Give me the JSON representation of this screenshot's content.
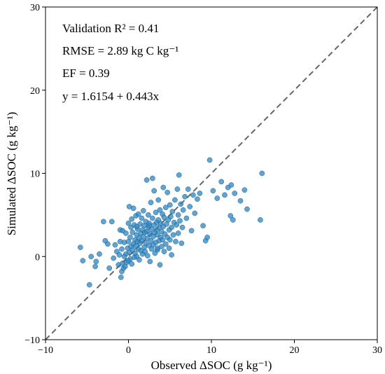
{
  "chart_data": {
    "type": "scatter",
    "xlabel": "Observed ΔSOC (g kg⁻¹)",
    "ylabel": "Simulated ΔSOC (g kg⁻¹)",
    "xlim": [
      -10,
      30
    ],
    "ylim": [
      -10,
      30
    ],
    "xticks": [
      "−10",
      "0",
      "10",
      "20",
      "30"
    ],
    "yticks": [
      "−10",
      "0",
      "10",
      "20",
      "30"
    ],
    "grid": false,
    "point_color": "#2e86c1",
    "reference_line": {
      "style": "dashed",
      "color": "#666666",
      "from": [
        -10,
        -10
      ],
      "to": [
        30,
        30
      ]
    },
    "annotations": [
      "Validation R² = 0.41",
      "RMSE = 2.89 kg C kg⁻¹",
      "EF = 0.39",
      "y = 1.6154 + 0.443x"
    ],
    "points": [
      [
        -5.8,
        1.1
      ],
      [
        -5.5,
        -0.5
      ],
      [
        -4.7,
        -3.4
      ],
      [
        -4.5,
        0.0
      ],
      [
        -4.0,
        -1.2
      ],
      [
        -3.9,
        -0.6
      ],
      [
        -3.5,
        0.3
      ],
      [
        -3.0,
        4.2
      ],
      [
        -2.8,
        1.9
      ],
      [
        -2.5,
        1.5
      ],
      [
        -2.3,
        -1.4
      ],
      [
        -2.0,
        4.2
      ],
      [
        -1.8,
        -0.2
      ],
      [
        -1.6,
        1.4
      ],
      [
        -1.4,
        0.6
      ],
      [
        -1.2,
        -1.0
      ],
      [
        -1.1,
        0.2
      ],
      [
        -1.0,
        3.2
      ],
      [
        -1.0,
        1.8
      ],
      [
        -0.9,
        -2.5
      ],
      [
        -0.8,
        -1.8
      ],
      [
        -0.8,
        0.9
      ],
      [
        -0.7,
        -0.8
      ],
      [
        -0.7,
        3.1
      ],
      [
        -0.6,
        -1.4
      ],
      [
        -0.5,
        1.7
      ],
      [
        -0.4,
        -1.2
      ],
      [
        -0.3,
        0.3
      ],
      [
        -0.3,
        2.8
      ],
      [
        -0.2,
        -0.7
      ],
      [
        -0.1,
        1.0
      ],
      [
        0.0,
        1.8
      ],
      [
        0.0,
        4.0
      ],
      [
        0.1,
        0.5
      ],
      [
        0.1,
        6.0
      ],
      [
        0.2,
        -0.3
      ],
      [
        0.2,
        2.3
      ],
      [
        0.3,
        3.5
      ],
      [
        0.3,
        1.2
      ],
      [
        0.4,
        4.5
      ],
      [
        0.4,
        -0.9
      ],
      [
        0.5,
        0.8
      ],
      [
        0.5,
        2.9
      ],
      [
        0.6,
        5.8
      ],
      [
        0.6,
        1.5
      ],
      [
        0.7,
        -0.1
      ],
      [
        0.7,
        3.8
      ],
      [
        0.8,
        2.0
      ],
      [
        0.8,
        0.4
      ],
      [
        0.9,
        1.3
      ],
      [
        0.9,
        4.9
      ],
      [
        1.0,
        2.6
      ],
      [
        1.0,
        0.0
      ],
      [
        1.1,
        1.8
      ],
      [
        1.1,
        3.3
      ],
      [
        1.2,
        0.9
      ],
      [
        1.2,
        5.1
      ],
      [
        1.3,
        2.2
      ],
      [
        1.3,
        -0.4
      ],
      [
        1.4,
        1.6
      ],
      [
        1.4,
        3.9
      ],
      [
        1.5,
        0.7
      ],
      [
        1.5,
        2.8
      ],
      [
        1.6,
        4.6
      ],
      [
        1.6,
        1.9
      ],
      [
        1.7,
        0.3
      ],
      [
        1.7,
        3.2
      ],
      [
        1.8,
        5.5
      ],
      [
        1.8,
        2.4
      ],
      [
        1.9,
        1.1
      ],
      [
        1.9,
        3.7
      ],
      [
        2.0,
        0.6
      ],
      [
        2.0,
        2.9
      ],
      [
        2.1,
        4.2
      ],
      [
        2.1,
        1.6
      ],
      [
        2.2,
        9.2
      ],
      [
        2.2,
        3.0
      ],
      [
        2.3,
        0.1
      ],
      [
        2.3,
        2.2
      ],
      [
        2.4,
        5.0
      ],
      [
        2.4,
        3.5
      ],
      [
        2.5,
        1.3
      ],
      [
        2.5,
        4.0
      ],
      [
        2.6,
        2.7
      ],
      [
        2.6,
        -0.6
      ],
      [
        2.7,
        6.5
      ],
      [
        2.7,
        1.9
      ],
      [
        2.8,
        3.3
      ],
      [
        2.8,
        0.9
      ],
      [
        2.9,
        9.4
      ],
      [
        2.9,
        4.6
      ],
      [
        3.0,
        2.4
      ],
      [
        3.0,
        1.4
      ],
      [
        3.1,
        3.8
      ],
      [
        3.1,
        7.9
      ],
      [
        3.2,
        0.4
      ],
      [
        3.2,
        2.9
      ],
      [
        3.3,
        5.3
      ],
      [
        3.3,
        1.7
      ],
      [
        3.4,
        4.1
      ],
      [
        3.4,
        3.2
      ],
      [
        3.5,
        0.8
      ],
      [
        3.5,
        2.6
      ],
      [
        3.6,
        6.8
      ],
      [
        3.6,
        4.4
      ],
      [
        3.7,
        1.9
      ],
      [
        3.7,
        3.5
      ],
      [
        3.8,
        -1.0
      ],
      [
        3.8,
        5.6
      ],
      [
        3.9,
        2.3
      ],
      [
        3.9,
        4.0
      ],
      [
        4.0,
        1.2
      ],
      [
        4.0,
        3.0
      ],
      [
        4.1,
        5.1
      ],
      [
        4.1,
        2.0
      ],
      [
        4.2,
        8.3
      ],
      [
        4.2,
        3.6
      ],
      [
        4.3,
        0.6
      ],
      [
        4.3,
        4.7
      ],
      [
        4.4,
        2.7
      ],
      [
        4.5,
        5.9
      ],
      [
        4.5,
        1.5
      ],
      [
        4.6,
        3.9
      ],
      [
        4.7,
        7.7
      ],
      [
        4.7,
        2.3
      ],
      [
        4.8,
        4.4
      ],
      [
        4.9,
        1.0
      ],
      [
        4.9,
        3.2
      ],
      [
        5.0,
        6.2
      ],
      [
        5.0,
        2.0
      ],
      [
        5.1,
        4.8
      ],
      [
        5.2,
        3.5
      ],
      [
        5.2,
        0.2
      ],
      [
        5.3,
        5.4
      ],
      [
        5.4,
        2.6
      ],
      [
        5.5,
        4.1
      ],
      [
        5.6,
        6.8
      ],
      [
        5.7,
        1.8
      ],
      [
        5.8,
        3.8
      ],
      [
        5.9,
        8.1
      ],
      [
        6.0,
        5.0
      ],
      [
        6.0,
        2.8
      ],
      [
        6.1,
        9.8
      ],
      [
        6.2,
        4.3
      ],
      [
        6.3,
        6.3
      ],
      [
        6.4,
        1.6
      ],
      [
        6.5,
        3.5
      ],
      [
        6.6,
        5.6
      ],
      [
        6.8,
        7.2
      ],
      [
        7.0,
        4.6
      ],
      [
        7.2,
        8.1
      ],
      [
        7.4,
        6.0
      ],
      [
        7.6,
        3.1
      ],
      [
        7.8,
        7.4
      ],
      [
        8.0,
        5.2
      ],
      [
        8.3,
        6.9
      ],
      [
        8.6,
        7.6
      ],
      [
        9.0,
        3.7
      ],
      [
        9.3,
        1.9
      ],
      [
        9.5,
        2.3
      ],
      [
        9.8,
        11.6
      ],
      [
        10.2,
        7.9
      ],
      [
        10.7,
        7.0
      ],
      [
        11.2,
        9.0
      ],
      [
        11.6,
        7.4
      ],
      [
        12.0,
        8.3
      ],
      [
        12.4,
        8.6
      ],
      [
        12.8,
        7.6
      ],
      [
        12.3,
        4.9
      ],
      [
        12.6,
        4.4
      ],
      [
        13.5,
        6.7
      ],
      [
        14.0,
        8.0
      ],
      [
        14.3,
        5.7
      ],
      [
        15.9,
        4.4
      ],
      [
        16.1,
        10.0
      ],
      [
        2.5,
        3.7
      ],
      [
        1.0,
        3.6
      ],
      [
        3.5,
        1.0
      ],
      [
        0.0,
        -0.5
      ],
      [
        -0.5,
        0.0
      ]
    ]
  }
}
